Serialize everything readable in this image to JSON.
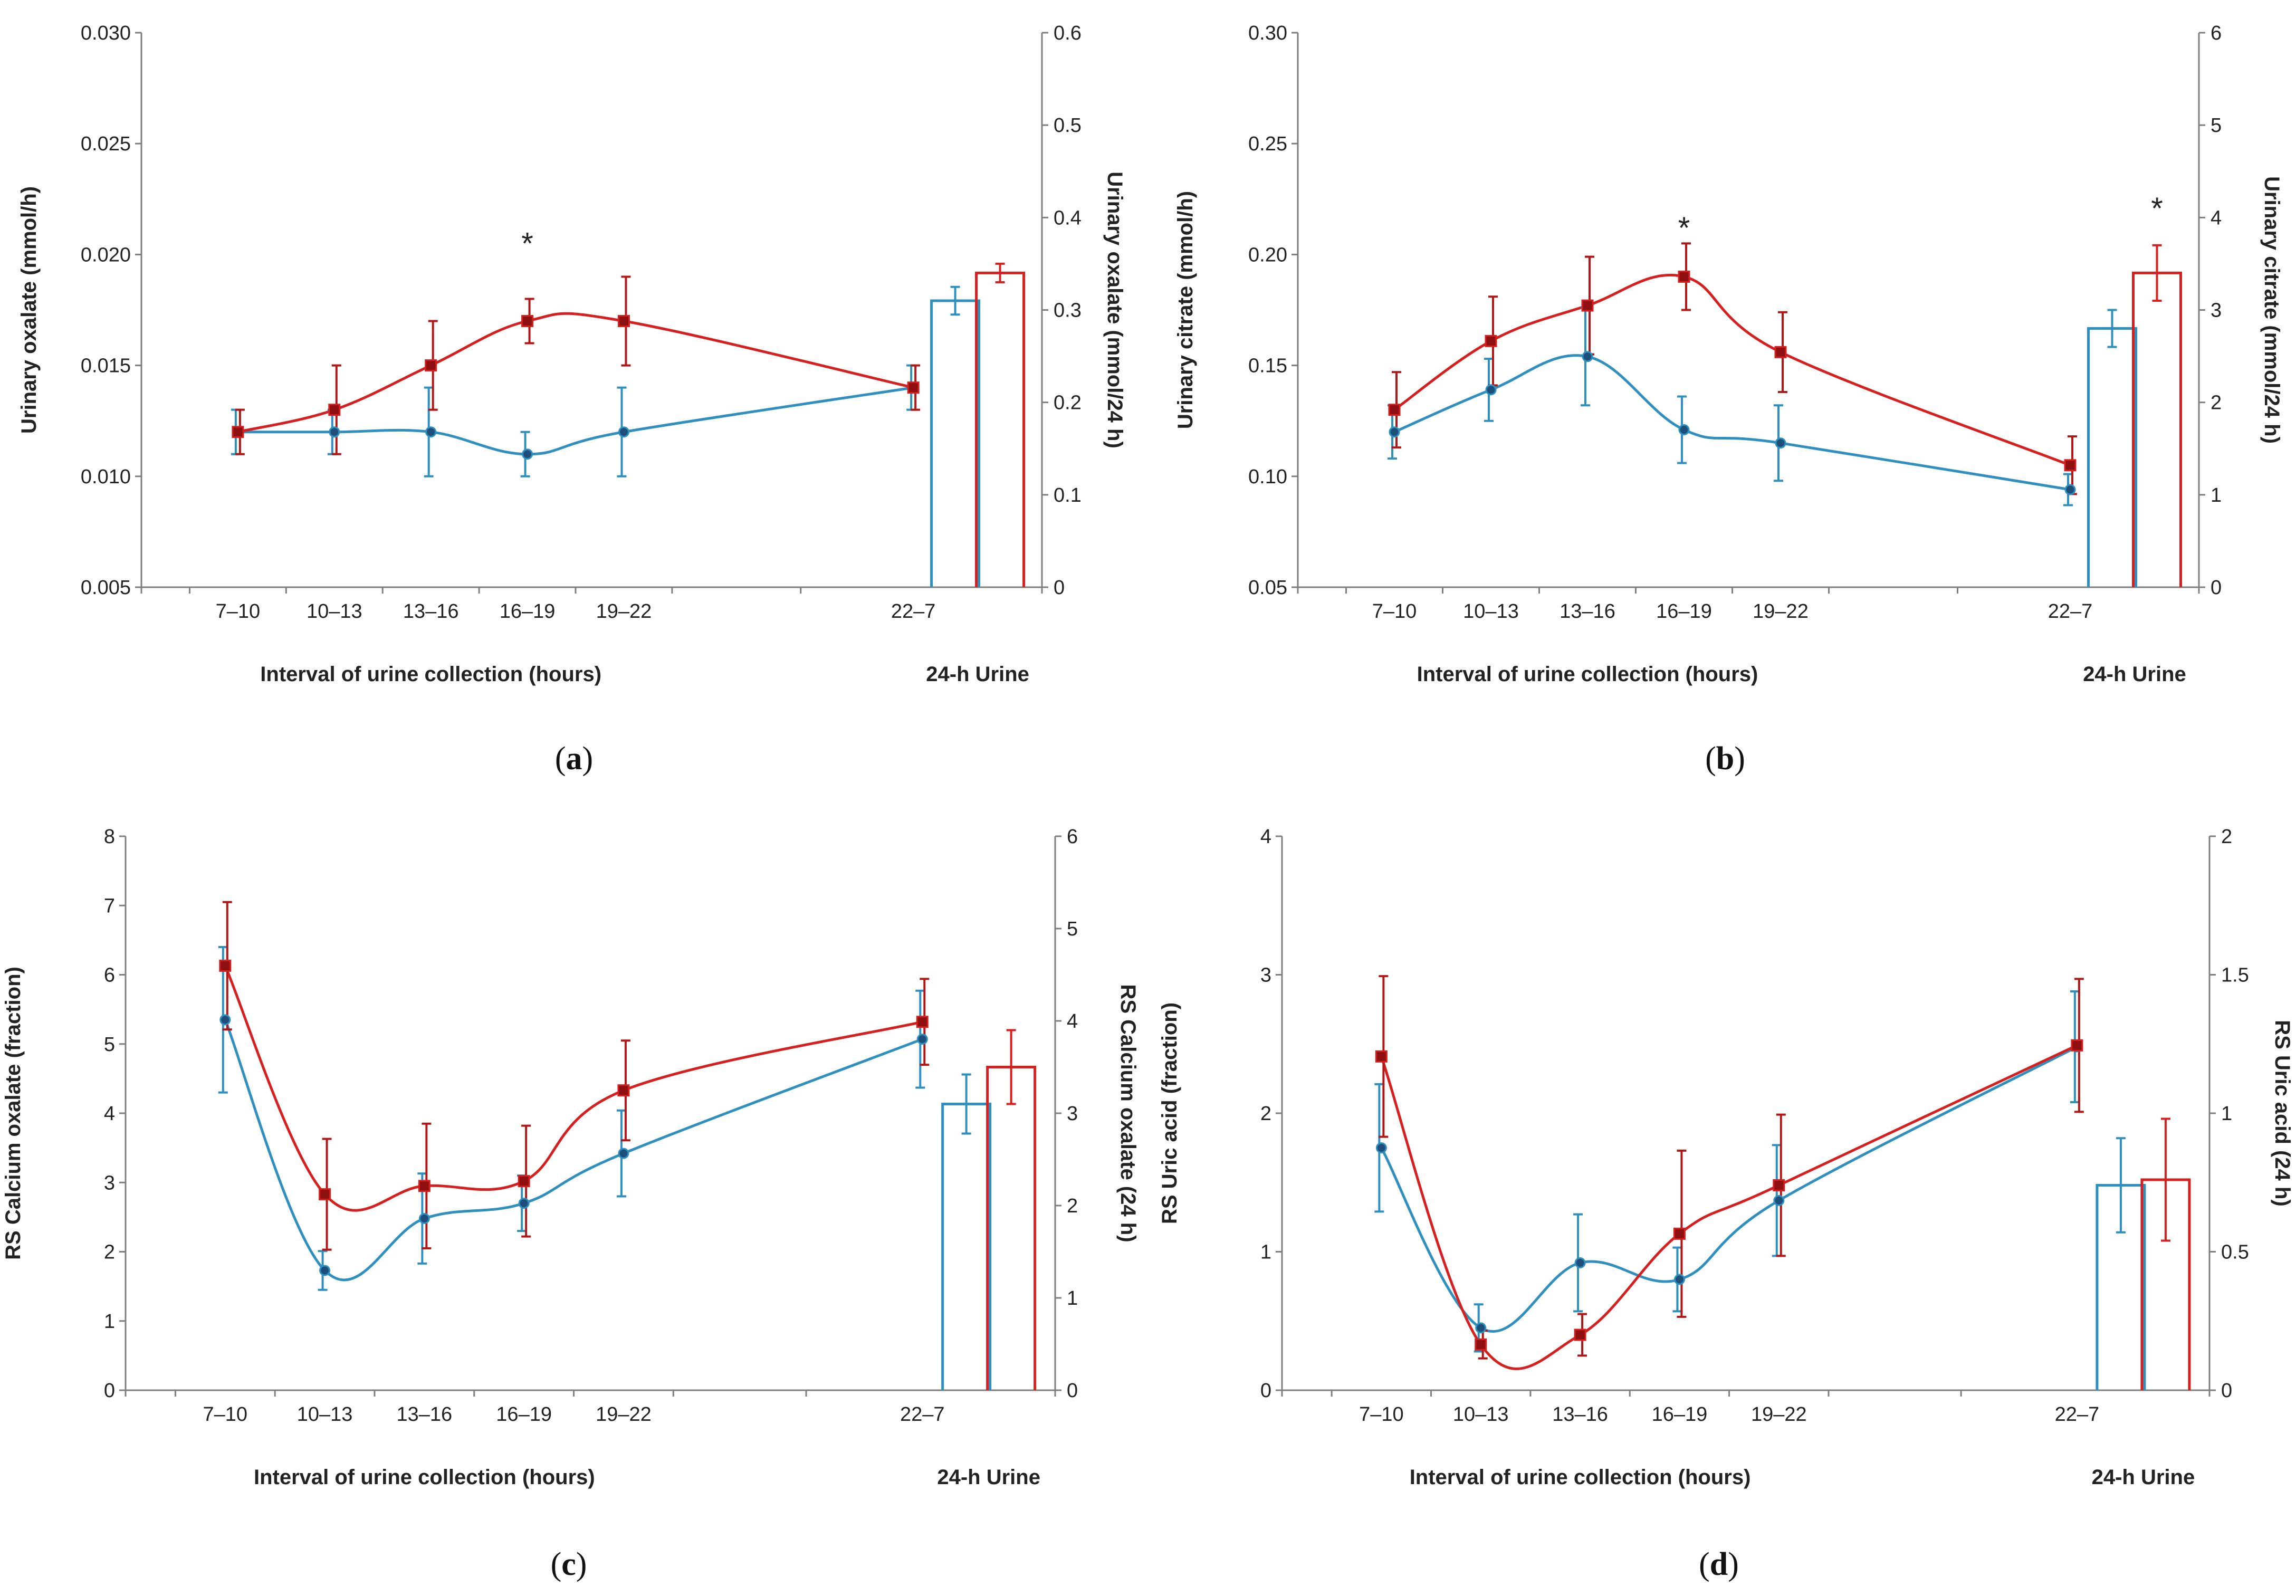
{
  "colors": {
    "series_a": "#2f8fbf",
    "series_b": "#d62020",
    "axis": "#7f7f7f",
    "text": "#222222"
  },
  "chart_data": [
    {
      "id": "a",
      "type": "line",
      "caption": {
        "open": "(",
        "letter": "a",
        "close": ")"
      },
      "categories": [
        "7–10",
        "10–13",
        "13–16",
        "16–19",
        "19–22",
        "22–7"
      ],
      "x_positions_hours": [
        8.5,
        11.5,
        14.5,
        17.5,
        20.5,
        29.5
      ],
      "xlim": [
        5.5,
        33.5
      ],
      "xlabel": "Interval of urine collection (hours)",
      "ylabel": "Urinary  oxalate (mmol/h)",
      "ylim": [
        0.005,
        0.03
      ],
      "yticks": [
        "0.005",
        "0.010",
        "0.015",
        "0.020",
        "0.025",
        "0.030"
      ],
      "y2label": "Urinary  oxalate (mmol/24 h)",
      "y2lim": [
        0,
        0.6
      ],
      "y2ticks": [
        "0",
        "0.1",
        "0.2",
        "0.3",
        "0.4",
        "0.5",
        "0.6"
      ],
      "series": [
        {
          "name": "blue",
          "values": [
            0.012,
            0.012,
            0.012,
            0.011,
            0.012,
            0.014
          ],
          "err": [
            0.001,
            0.001,
            0.002,
            0.001,
            0.002,
            0.001
          ]
        },
        {
          "name": "red",
          "values": [
            0.012,
            0.013,
            0.015,
            0.017,
            0.017,
            0.014
          ],
          "err": [
            0.001,
            0.002,
            0.002,
            0.001,
            0.002,
            0.001
          ]
        }
      ],
      "bars_label": "24-h Urine",
      "bars": [
        {
          "name": "blue",
          "value": 0.31,
          "err": 0.015
        },
        {
          "name": "red",
          "value": 0.34,
          "err": 0.01
        }
      ],
      "annotations": [
        {
          "text": "*",
          "category": "16–19",
          "y": 0.0205
        }
      ]
    },
    {
      "id": "b",
      "type": "line",
      "caption": {
        "open": "(",
        "letter": "b",
        "close": ")"
      },
      "categories": [
        "7–10",
        "10–13",
        "13–16",
        "16–19",
        "19–22",
        "22–7"
      ],
      "x_positions_hours": [
        8.5,
        11.5,
        14.5,
        17.5,
        20.5,
        29.5
      ],
      "xlim": [
        5.5,
        33.5
      ],
      "xlabel": "Interval of urine collection (hours)",
      "ylabel": "Urinary  citrate (mmol/h)",
      "ylim": [
        0.05,
        0.3
      ],
      "yticks": [
        "0.05",
        "0.10",
        "0.15",
        "0.20",
        "0.25",
        "0.30"
      ],
      "y2label": "Urinary  citrate (mmol/24 h)",
      "y2lim": [
        0,
        6
      ],
      "y2ticks": [
        "0",
        "1",
        "2",
        "3",
        "4",
        "5",
        "6"
      ],
      "series": [
        {
          "name": "blue",
          "values": [
            0.12,
            0.139,
            0.154,
            0.121,
            0.115,
            0.094
          ],
          "err": [
            0.012,
            0.014,
            0.022,
            0.015,
            0.017,
            0.007
          ]
        },
        {
          "name": "red",
          "values": [
            0.13,
            0.161,
            0.177,
            0.19,
            0.156,
            0.105
          ],
          "err": [
            0.017,
            0.02,
            0.022,
            0.015,
            0.018,
            0.013
          ]
        }
      ],
      "bars_label": "24-h Urine",
      "bars": [
        {
          "name": "blue",
          "value": 2.8,
          "err": 0.2
        },
        {
          "name": "red",
          "value": 3.4,
          "err": 0.3
        }
      ],
      "annotations": [
        {
          "text": "*",
          "category": "16–19",
          "y": 0.212
        },
        {
          "text": "*",
          "bar": "red",
          "y2": 4.1
        }
      ]
    },
    {
      "id": "c",
      "type": "line",
      "caption": {
        "open": "(",
        "letter": "c",
        "close": ")"
      },
      "categories": [
        "7–10",
        "10–13",
        "13–16",
        "16–19",
        "19–22",
        "22–7"
      ],
      "x_positions_hours": [
        8.5,
        11.5,
        14.5,
        17.5,
        20.5,
        29.5
      ],
      "xlim": [
        5.5,
        33.5
      ],
      "xlabel": "Interval of urine collection (hours)",
      "ylabel": "RS Calcium oxalate (fraction)",
      "ylim": [
        0,
        8
      ],
      "yticks": [
        "0",
        "1",
        "2",
        "3",
        "4",
        "5",
        "6",
        "7",
        "8"
      ],
      "y2label": "RS Calcium oxalate (24 h)",
      "y2lim": [
        0,
        6
      ],
      "y2ticks": [
        "0",
        "1",
        "2",
        "3",
        "4",
        "5",
        "6"
      ],
      "series": [
        {
          "name": "blue",
          "values": [
            5.35,
            1.73,
            2.48,
            2.7,
            3.42,
            5.07
          ],
          "err": [
            1.05,
            0.28,
            0.65,
            0.4,
            0.62,
            0.7
          ]
        },
        {
          "name": "red",
          "values": [
            6.13,
            2.83,
            2.95,
            3.02,
            4.33,
            5.32
          ],
          "err": [
            0.92,
            0.8,
            0.9,
            0.8,
            0.72,
            0.62
          ]
        }
      ],
      "bars_label": "24-h Urine",
      "bars": [
        {
          "name": "blue",
          "value": 3.1,
          "err": 0.32
        },
        {
          "name": "red",
          "value": 3.5,
          "err": 0.4
        }
      ],
      "annotations": []
    },
    {
      "id": "d",
      "type": "line",
      "caption": {
        "open": "(",
        "letter": "d",
        "close": ")"
      },
      "categories": [
        "7–10",
        "10–13",
        "13–16",
        "16–19",
        "19–22",
        "22–7"
      ],
      "x_positions_hours": [
        8.5,
        11.5,
        14.5,
        17.5,
        20.5,
        29.5
      ],
      "xlim": [
        5.5,
        33.5
      ],
      "xlabel": "Interval of urine collection (hours)",
      "ylabel": "RS Uric acid (fraction)",
      "ylim": [
        0,
        4
      ],
      "yticks": [
        "0",
        "1",
        "2",
        "3",
        "4"
      ],
      "y2label": "RS Uric acid (24 h)",
      "y2lim": [
        0,
        2
      ],
      "y2ticks": [
        "0",
        "0.5",
        "1",
        "1.5",
        "2"
      ],
      "series": [
        {
          "name": "blue",
          "values": [
            1.75,
            0.45,
            0.92,
            0.8,
            1.37,
            2.48
          ],
          "err": [
            0.46,
            0.17,
            0.35,
            0.23,
            0.4,
            0.4
          ]
        },
        {
          "name": "red",
          "values": [
            2.41,
            0.33,
            0.4,
            1.13,
            1.48,
            2.49
          ],
          "err": [
            0.58,
            0.1,
            0.15,
            0.6,
            0.51,
            0.48
          ]
        }
      ],
      "bars_label": "24-h Urine",
      "bars": [
        {
          "name": "blue",
          "value": 0.74,
          "err": 0.17
        },
        {
          "name": "red",
          "value": 0.76,
          "err": 0.22
        }
      ],
      "annotations": []
    }
  ]
}
